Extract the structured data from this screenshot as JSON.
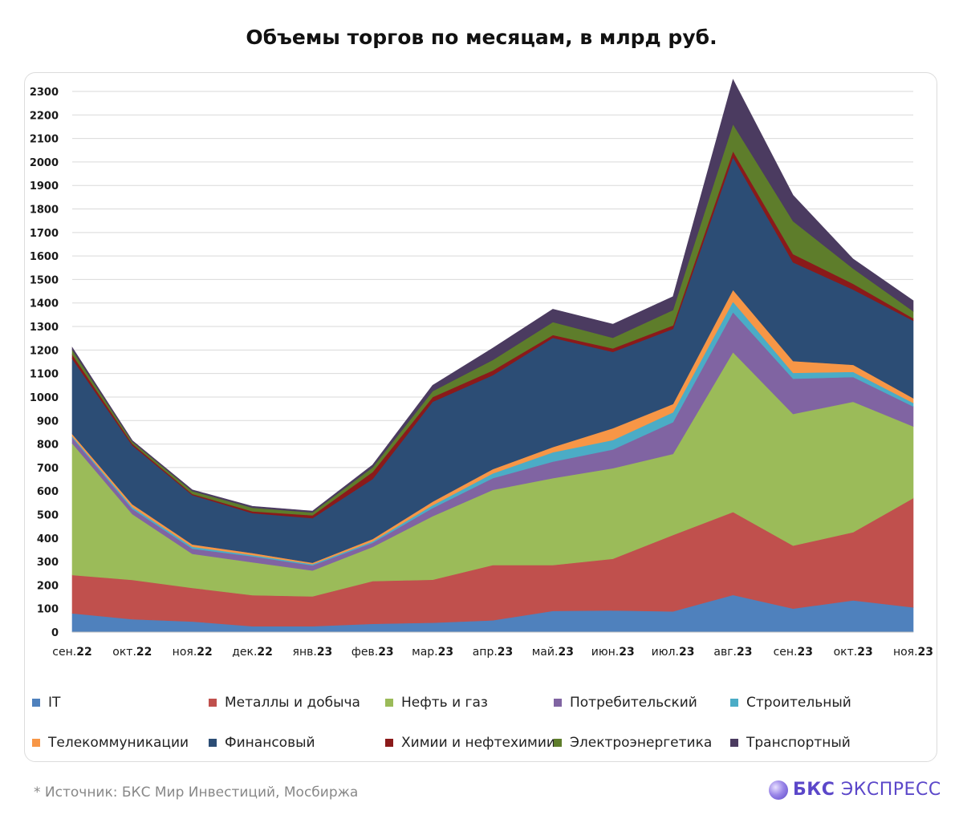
{
  "title": "Объемы торгов по месяцам, в млрд руб.",
  "footnote": "*  Источник: БКС Мир Инвестиций, Мосбиржа",
  "brand": {
    "strong": "БКС",
    "rest": " ЭКСПРЕСС"
  },
  "chart_data": {
    "type": "area",
    "stacked": true,
    "title": "Объемы торгов по месяцам, в млрд руб.",
    "categories": [
      "сен.22",
      "окт.22",
      "ноя.22",
      "дек.22",
      "янв.23",
      "фев.23",
      "мар.23",
      "апр.23",
      "май.23",
      "июн.23",
      "июл.23",
      "авг.23",
      "сен.23",
      "окт.23",
      "ноя.23"
    ],
    "yticks": [
      0,
      100,
      200,
      300,
      400,
      500,
      600,
      700,
      800,
      900,
      1000,
      1100,
      1200,
      1300,
      1400,
      1500,
      1600,
      1700,
      1800,
      1900,
      2000,
      2100,
      2200,
      2300
    ],
    "ylim": [
      0,
      2300
    ],
    "grid": true,
    "legend_position": "bottom",
    "series": [
      {
        "name": "IT",
        "color": "#4F81BD",
        "values": [
          80,
          55,
          45,
          25,
          25,
          35,
          40,
          50,
          90,
          92,
          88,
          158,
          100,
          135,
          105
        ]
      },
      {
        "name": "Металлы и добыча",
        "color": "#C0504D",
        "values": [
          163,
          167,
          143,
          132,
          127,
          182,
          183,
          235,
          195,
          220,
          325,
          353,
          268,
          290,
          465
        ]
      },
      {
        "name": "Нефть и газ",
        "color": "#9BBB59",
        "values": [
          560,
          280,
          145,
          140,
          110,
          145,
          270,
          320,
          370,
          385,
          345,
          680,
          560,
          555,
          305
        ]
      },
      {
        "name": "Потребительский",
        "color": "#8064A2",
        "values": [
          25,
          22,
          22,
          25,
          22,
          18,
          35,
          50,
          70,
          80,
          135,
          170,
          150,
          105,
          85
        ]
      },
      {
        "name": "Строительный",
        "color": "#4BACC6",
        "values": [
          5,
          8,
          8,
          6,
          5,
          6,
          12,
          20,
          40,
          40,
          42,
          45,
          25,
          22,
          15
        ]
      },
      {
        "name": "Телекоммуникации",
        "color": "#F79646",
        "values": [
          10,
          12,
          10,
          8,
          6,
          10,
          15,
          18,
          22,
          50,
          35,
          50,
          50,
          30,
          20
        ]
      },
      {
        "name": "Финансовый",
        "color": "#2C4D75",
        "values": [
          320,
          250,
          210,
          170,
          190,
          255,
          425,
          400,
          465,
          325,
          320,
          565,
          420,
          320,
          330
        ]
      },
      {
        "name": "Химии и нефтехимии",
        "color": "#8B1A1A",
        "values": [
          18,
          8,
          5,
          8,
          12,
          30,
          20,
          20,
          12,
          15,
          15,
          25,
          35,
          25,
          10
        ]
      },
      {
        "name": "Электроэнергетика",
        "color": "#5E7D2B",
        "values": [
          20,
          8,
          12,
          15,
          12,
          20,
          25,
          45,
          55,
          45,
          65,
          115,
          140,
          65,
          30
        ]
      },
      {
        "name": "Транспортный",
        "color": "#4B3B60",
        "values": [
          10,
          5,
          5,
          6,
          6,
          10,
          25,
          50,
          55,
          58,
          57,
          190,
          110,
          40,
          45
        ]
      }
    ]
  }
}
